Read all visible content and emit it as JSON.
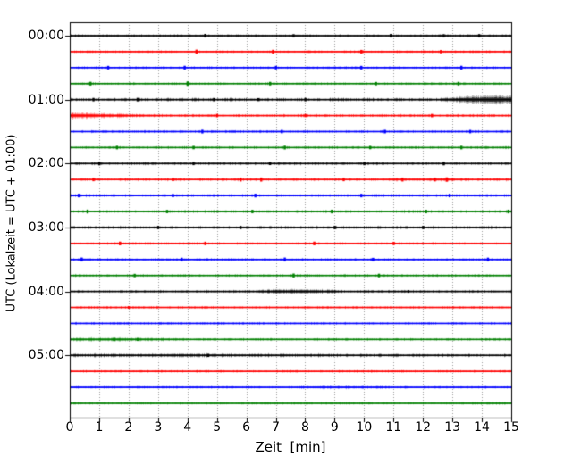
{
  "figure": {
    "xlabel": "Zeit  [min]",
    "ylabel": "UTC (Lokalzeit = UTC + 01:00)",
    "background": "#ffffff",
    "grid_color": "#999999",
    "axis_color": "#000000"
  },
  "chart_data": {
    "type": "line",
    "subtype": "seismogram-helicorder",
    "title": "",
    "xlabel": "Zeit  [min]",
    "ylabel": "UTC (Lokalzeit = UTC + 01:00)",
    "xlim": [
      0,
      15
    ],
    "x_tick_labels": [
      "0",
      "1",
      "2",
      "3",
      "4",
      "5",
      "6",
      "7",
      "8",
      "9",
      "10",
      "11",
      "12",
      "13",
      "14",
      "15"
    ],
    "y_tick_labels": [
      "00:00",
      "01:00",
      "02:00",
      "03:00",
      "04:00",
      "05:00"
    ],
    "grid": "vertical dotted gridline at every minute",
    "legend": "none",
    "minutes_per_row": 15,
    "trace_color_cycle": [
      "#000000",
      "#ff0000",
      "#0000ff",
      "#008000"
    ],
    "rows": [
      {
        "start": "00:00",
        "color": "#000000",
        "noise": 0.7,
        "spikes": [
          [
            4.6,
            1.5
          ],
          [
            7.6,
            1.2
          ],
          [
            10.9,
            1.4
          ],
          [
            12.7,
            1.2
          ],
          [
            13.9,
            1.3
          ]
        ],
        "events": []
      },
      {
        "start": "00:15",
        "color": "#ff0000",
        "noise": 0.65,
        "spikes": [
          [
            4.3,
            1.8
          ],
          [
            6.9,
            1.6
          ],
          [
            9.9,
            1.5
          ],
          [
            12.6,
            1.3
          ]
        ],
        "events": []
      },
      {
        "start": "00:30",
        "color": "#0000ff",
        "noise": 0.65,
        "spikes": [
          [
            1.3,
            1.5
          ],
          [
            3.9,
            1.6
          ],
          [
            7.0,
            1.5
          ],
          [
            9.9,
            1.5
          ],
          [
            13.3,
            1.6
          ]
        ],
        "events": []
      },
      {
        "start": "00:45",
        "color": "#008000",
        "noise": 0.65,
        "spikes": [
          [
            0.7,
            1.6
          ],
          [
            4.0,
            2.0
          ],
          [
            6.8,
            1.5
          ],
          [
            10.4,
            1.4
          ],
          [
            13.2,
            1.5
          ]
        ],
        "events": []
      },
      {
        "start": "01:00",
        "color": "#000000",
        "noise": 0.85,
        "spikes": [
          [
            0.8,
            1.4
          ],
          [
            2.3,
            1.5
          ],
          [
            4.9,
            1.3
          ],
          [
            6.4,
            1.2
          ],
          [
            8.0,
            1.4
          ]
        ],
        "events": [
          {
            "env": [
              [
                12.6,
                0.5
              ],
              [
                13.4,
                2.2
              ],
              [
                14.1,
                4.2
              ],
              [
                14.6,
                4.6
              ],
              [
                15,
                3.6
              ]
            ]
          }
        ]
      },
      {
        "start": "01:15",
        "color": "#ff0000",
        "noise": 0.7,
        "spikes": [
          [
            5.0,
            1.4
          ],
          [
            8.0,
            1.3
          ],
          [
            12.3,
            1.4
          ]
        ],
        "events": [
          {
            "env": [
              [
                0,
                3.0
              ],
              [
                0.7,
                2.2
              ],
              [
                1.5,
                1.3
              ],
              [
                2.5,
                0.5
              ],
              [
                3.5,
                0.2
              ]
            ]
          }
        ]
      },
      {
        "start": "01:30",
        "color": "#0000ff",
        "noise": 0.65,
        "spikes": [
          [
            4.5,
            1.6
          ],
          [
            7.2,
            1.4
          ],
          [
            10.7,
            1.5
          ],
          [
            13.6,
            1.4
          ]
        ],
        "events": []
      },
      {
        "start": "01:45",
        "color": "#008000",
        "noise": 0.65,
        "spikes": [
          [
            1.6,
            1.5
          ],
          [
            4.2,
            1.4
          ],
          [
            7.3,
            1.6
          ],
          [
            10.2,
            1.4
          ],
          [
            13.3,
            1.5
          ]
        ],
        "events": []
      },
      {
        "start": "02:00",
        "color": "#000000",
        "noise": 0.75,
        "spikes": [
          [
            1.0,
            1.5
          ],
          [
            4.2,
            1.3
          ],
          [
            6.8,
            1.2
          ],
          [
            10.0,
            1.4
          ],
          [
            12.7,
            1.5
          ]
        ],
        "events": []
      },
      {
        "start": "02:15",
        "color": "#ff0000",
        "noise": 0.75,
        "spikes": [
          [
            0.8,
            1.4
          ],
          [
            3.5,
            1.3
          ],
          [
            5.8,
            1.7
          ],
          [
            6.5,
            1.8
          ],
          [
            9.3,
            1.4
          ],
          [
            11.3,
            1.7
          ],
          [
            12.4,
            1.6
          ],
          [
            12.8,
            2.0
          ]
        ],
        "events": [
          {
            "env": [
              [
                10.8,
                0.4
              ],
              [
                12.5,
                0.7
              ],
              [
                13.3,
                0.3
              ]
            ]
          }
        ]
      },
      {
        "start": "02:30",
        "color": "#0000ff",
        "noise": 0.75,
        "spikes": [
          [
            0.3,
            1.5
          ],
          [
            3.5,
            1.4
          ],
          [
            6.3,
            1.6
          ],
          [
            9.9,
            1.5
          ],
          [
            12.9,
            1.4
          ]
        ],
        "events": []
      },
      {
        "start": "02:45",
        "color": "#008000",
        "noise": 0.75,
        "spikes": [
          [
            0.6,
            1.7
          ],
          [
            3.3,
            1.4
          ],
          [
            6.2,
            1.5
          ],
          [
            8.9,
            1.6
          ],
          [
            12.1,
            1.5
          ],
          [
            14.9,
            1.6
          ]
        ],
        "events": []
      },
      {
        "start": "03:00",
        "color": "#000000",
        "noise": 0.8,
        "spikes": [
          [
            3.0,
            1.4
          ],
          [
            5.8,
            1.3
          ],
          [
            9.0,
            1.5
          ],
          [
            12.0,
            1.4
          ]
        ],
        "events": []
      },
      {
        "start": "03:15",
        "color": "#ff0000",
        "noise": 0.65,
        "spikes": [
          [
            1.7,
            1.6
          ],
          [
            4.6,
            1.5
          ],
          [
            8.3,
            1.6
          ],
          [
            11.0,
            1.4
          ]
        ],
        "events": []
      },
      {
        "start": "03:30",
        "color": "#0000ff",
        "noise": 0.65,
        "spikes": [
          [
            0.4,
            1.7
          ],
          [
            3.8,
            1.5
          ],
          [
            7.3,
            1.7
          ],
          [
            10.3,
            1.4
          ],
          [
            14.2,
            1.6
          ]
        ],
        "events": []
      },
      {
        "start": "03:45",
        "color": "#008000",
        "noise": 0.65,
        "spikes": [
          [
            2.2,
            1.4
          ],
          [
            7.6,
            1.7
          ],
          [
            10.5,
            1.5
          ]
        ],
        "events": []
      },
      {
        "start": "04:00",
        "color": "#000000",
        "noise": 0.7,
        "spikes": [
          [
            11.5,
            1.0
          ]
        ],
        "events": [
          {
            "env": [
              [
                6.3,
                0.4
              ],
              [
                7.2,
                1.5
              ],
              [
                7.9,
                1.7
              ],
              [
                8.6,
                1.0
              ],
              [
                9.2,
                0.3
              ]
            ]
          }
        ]
      },
      {
        "start": "04:15",
        "color": "#ff0000",
        "noise": 0.6,
        "spikes": [
          [
            2.0,
            1.0
          ]
        ],
        "events": []
      },
      {
        "start": "04:30",
        "color": "#0000ff",
        "noise": 0.6,
        "spikes": [],
        "events": []
      },
      {
        "start": "04:45",
        "color": "#008000",
        "noise": 0.65,
        "spikes": [
          [
            1.5,
            1.3
          ],
          [
            2.3,
            1.2
          ]
        ],
        "events": [
          {
            "env": [
              [
                0,
                0.9
              ],
              [
                1.8,
                1.0
              ],
              [
                3.5,
                0.3
              ]
            ]
          }
        ]
      },
      {
        "start": "05:00",
        "color": "#000000",
        "noise": 0.8,
        "spikes": [
          [
            4.7,
            1.3
          ]
        ],
        "events": [
          {
            "env": [
              [
                0,
                0.3
              ],
              [
                4,
                0.5
              ],
              [
                8,
                0.4
              ],
              [
                9.5,
                0.1
              ]
            ]
          }
        ]
      },
      {
        "start": "05:15",
        "color": "#ff0000",
        "noise": 0.65,
        "spikes": [],
        "events": []
      },
      {
        "start": "05:30",
        "color": "#0000ff",
        "noise": 0.65,
        "spikes": [],
        "events": [
          {
            "env": [
              [
                7.8,
                0.4
              ],
              [
                9.2,
                0.7
              ],
              [
                10.6,
                0.3
              ]
            ]
          }
        ]
      },
      {
        "start": "05:45",
        "color": "#008000",
        "noise": 0.6,
        "spikes": [],
        "events": [
          {
            "env": [
              [
                13.2,
                0.3
              ],
              [
                14.3,
                0.5
              ],
              [
                15,
                0.4
              ]
            ]
          }
        ]
      }
    ]
  }
}
